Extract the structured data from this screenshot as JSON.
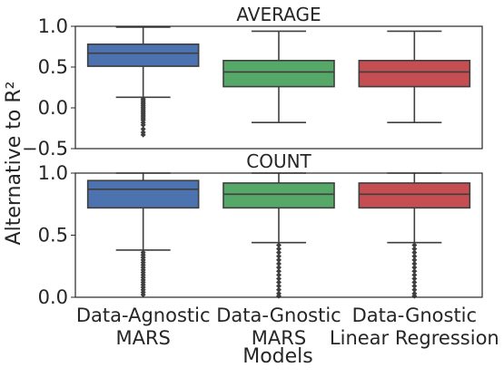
{
  "chart_data": {
    "type": "box",
    "ylabel": "Alternative to R²",
    "xlabel": "Models",
    "categories": [
      [
        "Data-Agnostic",
        "MARS"
      ],
      [
        "Data-Gnostic",
        "MARS"
      ],
      [
        "Data-Gnostic",
        "Linear Regression"
      ]
    ],
    "colors": [
      "#4c72b0",
      "#55a868",
      "#c44e52"
    ],
    "panels": [
      {
        "title": "AVERAGE",
        "ylim": [
          -0.5,
          1.0
        ],
        "yticks": [
          {
            "value": 1.0,
            "label": "1.0"
          },
          {
            "value": 0.5,
            "label": "0.5"
          },
          {
            "value": 0.0,
            "label": "0.0"
          },
          {
            "value": -0.5,
            "label": "−0.5"
          }
        ],
        "boxes": [
          {
            "whisker_low": 0.13,
            "q1": 0.51,
            "median": 0.67,
            "q3": 0.78,
            "whisker_high": 0.99,
            "fliers": [
              0.11,
              0.09,
              0.07,
              0.05,
              0.03,
              0.01,
              -0.01,
              -0.03,
              -0.05,
              -0.07,
              -0.09,
              -0.11,
              -0.13,
              -0.15,
              -0.18,
              -0.21,
              -0.26,
              -0.3,
              -0.33
            ]
          },
          {
            "whisker_low": -0.18,
            "q1": 0.26,
            "median": 0.44,
            "q3": 0.58,
            "whisker_high": 0.94,
            "fliers": []
          },
          {
            "whisker_low": -0.18,
            "q1": 0.26,
            "median": 0.44,
            "q3": 0.58,
            "whisker_high": 0.94,
            "fliers": []
          }
        ]
      },
      {
        "title": "COUNT",
        "ylim": [
          0.0,
          1.0
        ],
        "yticks": [
          {
            "value": 1.0,
            "label": "1.0"
          },
          {
            "value": 0.5,
            "label": "0.5"
          },
          {
            "value": 0.0,
            "label": "0.0"
          }
        ],
        "boxes": [
          {
            "whisker_low": 0.38,
            "q1": 0.72,
            "median": 0.87,
            "q3": 0.94,
            "whisker_high": 1.0,
            "fliers": [
              0.36,
              0.34,
              0.32,
              0.3,
              0.28,
              0.26,
              0.24,
              0.22,
              0.2,
              0.18,
              0.16,
              0.14,
              0.12,
              0.1,
              0.08,
              0.06,
              0.04,
              0.02
            ]
          },
          {
            "whisker_low": 0.44,
            "q1": 0.72,
            "median": 0.83,
            "q3": 0.92,
            "whisker_high": 1.0,
            "fliers": [
              0.42,
              0.39,
              0.36,
              0.33,
              0.3,
              0.27,
              0.24,
              0.21,
              0.18,
              0.15,
              0.12,
              0.09,
              0.06,
              0.03,
              0.01
            ]
          },
          {
            "whisker_low": 0.44,
            "q1": 0.72,
            "median": 0.83,
            "q3": 0.92,
            "whisker_high": 1.0,
            "fliers": [
              0.42,
              0.39,
              0.36,
              0.33,
              0.3,
              0.27,
              0.24,
              0.21,
              0.18,
              0.15,
              0.12,
              0.09,
              0.06,
              0.03,
              0.01
            ]
          }
        ]
      }
    ]
  }
}
